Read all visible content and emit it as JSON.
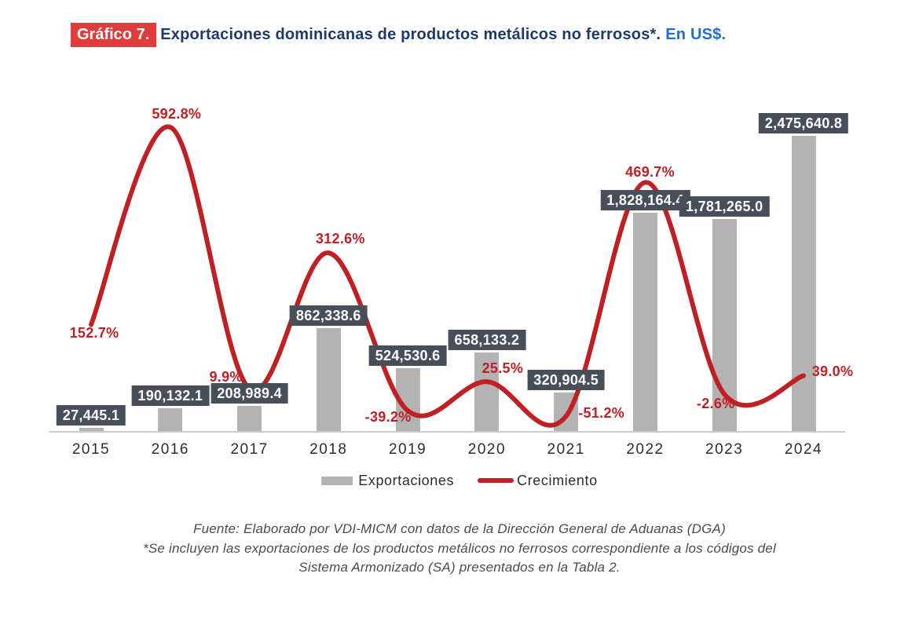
{
  "title": {
    "badge": "Gráfico 7.",
    "main": "Exportaciones dominicanas de productos metálicos no ferrosos*.",
    "suffix": "En US$."
  },
  "chart_data": {
    "type": "bar",
    "title": "Gráfico 7. Exportaciones dominicanas de productos metálicos no ferrosos*. En US$.",
    "categories": [
      "2015",
      "2016",
      "2017",
      "2018",
      "2019",
      "2020",
      "2021",
      "2022",
      "2023",
      "2024"
    ],
    "series": [
      {
        "name": "Exportaciones",
        "type": "bar",
        "values": [
          27445.1,
          190132.1,
          208989.4,
          862338.6,
          524530.6,
          658133.2,
          320904.5,
          1828164.4,
          1781265.0,
          2475640.8
        ],
        "labels": [
          "27,445.1",
          "190,132.1",
          "208,989.4",
          "862,338.6",
          "524,530.6",
          "658,133.2",
          "320,904.5",
          "1,828,164.4",
          "1,781,265.0",
          "2,475,640.8"
        ]
      },
      {
        "name": "Crecimiento",
        "type": "line",
        "values": [
          152.7,
          592.8,
          9.9,
          312.6,
          -39.2,
          25.5,
          -51.2,
          469.7,
          -2.6,
          39.0
        ],
        "labels": [
          "152.7%",
          "592.8%",
          "9.9%",
          "312.6%",
          "-39.2%",
          "25.5%",
          "-51.2%",
          "469.7%",
          "-2.6%",
          "39.0%"
        ]
      }
    ],
    "ylabel": "",
    "xlabel": "",
    "grid": false,
    "y_axis_visible": false,
    "legend_position": "bottom"
  },
  "legend": {
    "items": [
      {
        "label": "Exportaciones",
        "swatch": "gray-bar"
      },
      {
        "label": "Crecimiento",
        "swatch": "red-line"
      }
    ]
  },
  "footer": {
    "line1": "Fuente: Elaborado por VDI-MICM con datos de la Dirección General de Aduanas (DGA)",
    "line2": "*Se incluyen las exportaciones de los productos metálicos no ferrosos correspondiente a los códigos del",
    "line3": "Sistema Armonizado (SA) presentados en la Tabla 2."
  },
  "colors": {
    "bar": "#B3B3B3",
    "line": "#C01F24",
    "percent_label": "#C01F24",
    "badge_bg": "#E23B3C",
    "title_main": "#1E3A6B",
    "title_suffix": "#1F6FD2",
    "value_box_bg": "#494F5A",
    "axis": "#CBCBCB"
  }
}
